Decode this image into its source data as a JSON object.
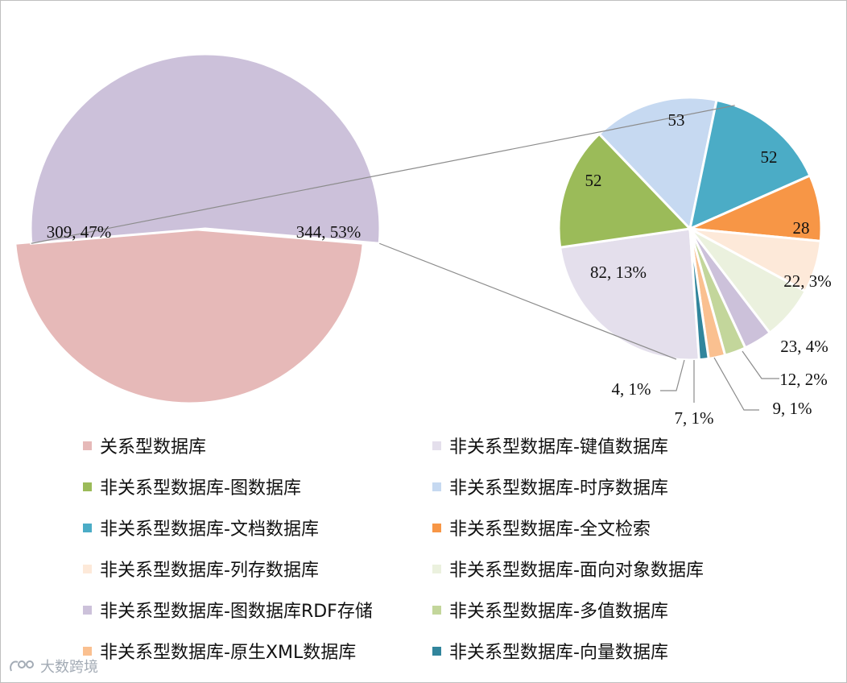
{
  "chart_data": {
    "type": "pie",
    "subtype": "pie-of-pie",
    "main_pie": [
      {
        "name": "关系型数据库",
        "value": 309,
        "label": "309, 47%",
        "color": "#e6b9b8"
      },
      {
        "name": "非关系型数据库",
        "value": 344,
        "label": "344, 53%",
        "color": "#ccc1da"
      }
    ],
    "secondary_pie": [
      {
        "name": "非关系型数据库-键值数据库",
        "value": 82,
        "label": "82, 13%",
        "color": "#e4dfec"
      },
      {
        "name": "非关系型数据库-图数据库",
        "value": 52,
        "label": "52",
        "color": "#9bbb59"
      },
      {
        "name": "非关系型数据库-时序数据库",
        "value": 53,
        "label": "53",
        "color": "#c6d9f1"
      },
      {
        "name": "非关系型数据库-文档数据库",
        "value": 52,
        "label": "52",
        "color": "#4bacc6"
      },
      {
        "name": "非关系型数据库-全文检索",
        "value": 28,
        "label": "28",
        "color": "#f79646"
      },
      {
        "name": "非关系型数据库-列存数据库",
        "value": 22,
        "label": "22, 3%",
        "color": "#fde9d9"
      },
      {
        "name": "非关系型数据库-面向对象数据库",
        "value": 23,
        "label": "23, 4%",
        "color": "#ebf1de"
      },
      {
        "name": "非关系型数据库-图数据库RDF存储",
        "value": 12,
        "label": "12, 2%",
        "color": "#ccc1da"
      },
      {
        "name": "非关系型数据库-多值数据库",
        "value": 9,
        "label": "9, 1%",
        "color": "#c3d69b"
      },
      {
        "name": "非关系型数据库-原生XML数据库",
        "value": 7,
        "label": "7, 1%",
        "color": "#fac090"
      },
      {
        "name": "非关系型数据库-向量数据库",
        "value": 4,
        "label": "4, 1%",
        "color": "#31859c"
      }
    ],
    "legend": [
      {
        "name": "关系型数据库",
        "color": "#e6b9b8"
      },
      {
        "name": "非关系型数据库-键值数据库",
        "color": "#e4dfec"
      },
      {
        "name": "非关系型数据库-图数据库",
        "color": "#9bbb59"
      },
      {
        "name": "非关系型数据库-时序数据库",
        "color": "#c6d9f1"
      },
      {
        "name": "非关系型数据库-文档数据库",
        "color": "#4bacc6"
      },
      {
        "name": "非关系型数据库-全文检索",
        "color": "#f79646"
      },
      {
        "name": "非关系型数据库-列存数据库",
        "color": "#fde9d9"
      },
      {
        "name": "非关系型数据库-面向对象数据库",
        "color": "#ebf1de"
      },
      {
        "name": "非关系型数据库-图数据库RDF存储",
        "color": "#ccc1da"
      },
      {
        "name": "非关系型数据库-多值数据库",
        "color": "#c3d69b"
      },
      {
        "name": "非关系型数据库-原生XML数据库",
        "color": "#fac090"
      },
      {
        "name": "非关系型数据库-向量数据库",
        "color": "#31859c"
      }
    ],
    "legend_position": "bottom"
  },
  "watermark": {
    "text": "大数跨境"
  }
}
